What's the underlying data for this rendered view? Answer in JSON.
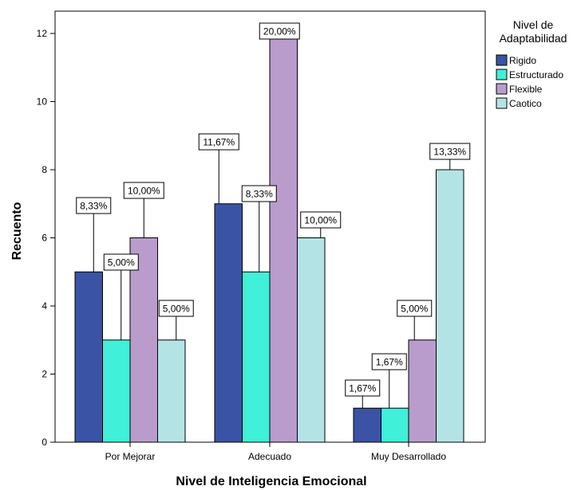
{
  "chart_data": {
    "type": "bar",
    "categories": [
      "Por Mejorar",
      "Adecuado",
      "Muy Desarrollado"
    ],
    "series": [
      {
        "name": "Rigido",
        "color": "#3a53a4",
        "values": [
          5,
          7,
          1
        ],
        "labels": [
          "8,33%",
          "11,67%",
          "1,67%"
        ]
      },
      {
        "name": "Estructurado",
        "color": "#40f0d8",
        "values": [
          3,
          5,
          1
        ],
        "labels": [
          "5,00%",
          "8,33%",
          "1,67%"
        ]
      },
      {
        "name": "Flexible",
        "color": "#b99ccb",
        "values": [
          6,
          12,
          3
        ],
        "labels": [
          "10,00%",
          "20,00%",
          "5,00%"
        ]
      },
      {
        "name": "Caotico",
        "color": "#b4e3e6",
        "values": [
          3,
          6,
          8
        ],
        "labels": [
          "5,00%",
          "10,00%",
          "13,33%"
        ]
      }
    ],
    "xlabel": "Nivel de Inteligencia Emocional",
    "ylabel": "Recuento",
    "ylim": [
      0,
      12
    ],
    "yticks": [
      0,
      2,
      4,
      6,
      8,
      10,
      12
    ],
    "legend": {
      "title_lines": [
        "Nivel de",
        "Adaptabilidad"
      ],
      "position": "top-right, outside plot"
    },
    "grid": false
  }
}
